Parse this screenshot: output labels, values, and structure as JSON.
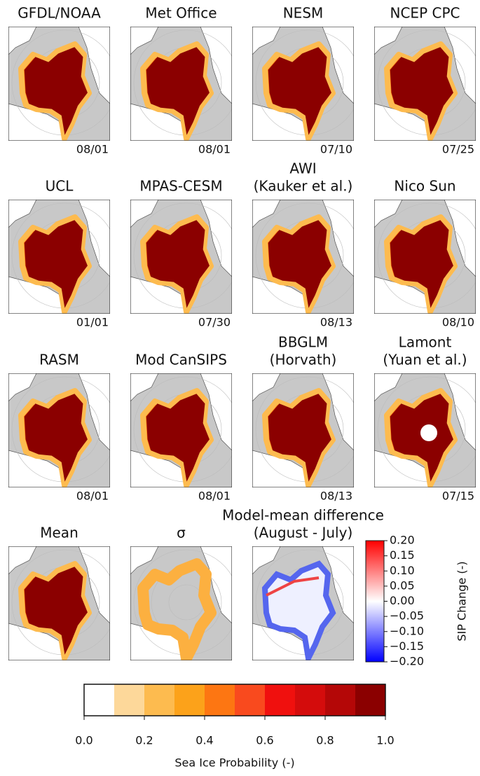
{
  "panels": [
    {
      "title": [
        "GFDL/NOAA"
      ],
      "date": "08/01"
    },
    {
      "title": [
        "Met Office"
      ],
      "date": "08/01"
    },
    {
      "title": [
        "NESM"
      ],
      "date": "07/10"
    },
    {
      "title": [
        "NCEP CPC"
      ],
      "date": "07/25"
    },
    {
      "title": [
        "UCL"
      ],
      "date": "01/01"
    },
    {
      "title": [
        "MPAS-CESM"
      ],
      "date": "07/30"
    },
    {
      "title": [
        "AWI",
        "(Kauker et al.)"
      ],
      "date": "08/13"
    },
    {
      "title": [
        "Nico Sun"
      ],
      "date": "08/10"
    },
    {
      "title": [
        "RASM"
      ],
      "date": "08/01"
    },
    {
      "title": [
        "Mod CanSIPS"
      ],
      "date": "08/01"
    },
    {
      "title": [
        "BBGLM",
        "(Horvath)"
      ],
      "date": "08/13"
    },
    {
      "title": [
        "Lamont",
        "(Yuan et al.)"
      ],
      "date": "07/15"
    },
    {
      "title": [
        "Mean"
      ]
    },
    {
      "title": [
        "σ"
      ]
    },
    {
      "title": [
        "Model-mean difference",
        "(August - July)"
      ]
    }
  ],
  "probability_colorbar": {
    "label": "Sea Ice Probability (-)",
    "xlim": [
      0,
      1
    ],
    "colors": [
      "#ffffff",
      "#fdd89a",
      "#fdbb4f",
      "#fca21a",
      "#fd7612",
      "#f94a1e",
      "#f0100e",
      "#d40c0c",
      "#b40707",
      "#8b0000"
    ],
    "xticks": [
      {
        "value": 0,
        "label": "0.0"
      },
      {
        "value": 0.2,
        "label": "0.2"
      },
      {
        "value": 0.4,
        "label": "0.4"
      },
      {
        "value": 0.6,
        "label": "0.6"
      },
      {
        "value": 0.8,
        "label": "0.8"
      },
      {
        "value": 1,
        "label": "1.0"
      }
    ]
  },
  "change_colorbar": {
    "label": "SIP Change (-)",
    "ylim": [
      -0.2,
      0.2
    ],
    "colors": [
      "#0000ff",
      "#ffffff",
      "#ff0000"
    ],
    "yticks": [
      {
        "value": 0.2,
        "label": "0.20"
      },
      {
        "value": 0.15,
        "label": "0.15"
      },
      {
        "value": 0.1,
        "label": "0.10"
      },
      {
        "value": 0.05,
        "label": "0.05"
      },
      {
        "value": 0,
        "label": "0.00"
      },
      {
        "value": -0.05,
        "label": "−0.05"
      },
      {
        "value": -0.1,
        "label": "−0.10"
      },
      {
        "value": -0.15,
        "label": "−0.15"
      },
      {
        "value": -0.2,
        "label": "−0.20"
      }
    ]
  }
}
